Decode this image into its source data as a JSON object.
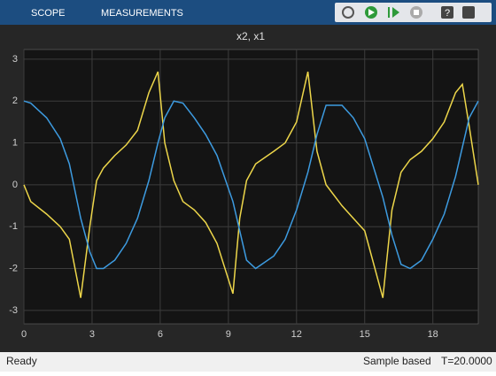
{
  "toolbar": {
    "tabs": [
      "SCOPE",
      "MEASUREMENTS"
    ]
  },
  "status": {
    "left": "Ready",
    "mode": "Sample based",
    "time": "T=20.0000"
  },
  "chart_data": {
    "type": "line",
    "title": "x2, x1",
    "x": [
      0,
      0.3,
      1,
      1.6,
      2,
      2.5,
      2.9,
      3.2,
      3.5,
      4,
      4.5,
      5,
      5.5,
      5.9,
      6.2,
      6.6,
      7,
      7.5,
      8,
      8.5,
      9.2,
      9.5,
      9.8,
      10.2,
      11,
      11.5,
      12,
      12.5,
      12.9,
      13.3,
      14,
      14.5,
      15,
      15.8,
      16.2,
      16.6,
      17,
      17.5,
      18,
      18.5,
      19,
      19.3,
      19.6,
      20
    ],
    "series": [
      {
        "color": "#edd64a",
        "values": [
          0,
          -0.4,
          -0.7,
          -1.0,
          -1.3,
          -2.7,
          -1.0,
          0.1,
          0.4,
          0.7,
          0.95,
          1.3,
          2.2,
          2.7,
          1.0,
          0.1,
          -0.4,
          -0.6,
          -0.9,
          -1.4,
          -2.6,
          -0.8,
          0.1,
          0.5,
          0.8,
          1.0,
          1.5,
          2.7,
          0.8,
          0.0,
          -0.5,
          -0.8,
          -1.1,
          -2.7,
          -0.6,
          0.3,
          0.6,
          0.8,
          1.1,
          1.5,
          2.2,
          2.4,
          1.4,
          0.0
        ]
      },
      {
        "color": "#3d9be0",
        "values": [
          2.0,
          1.95,
          1.6,
          1.1,
          0.5,
          -0.8,
          -1.6,
          -2.0,
          -2.0,
          -1.8,
          -1.4,
          -0.8,
          0.1,
          1.0,
          1.6,
          2.0,
          1.95,
          1.6,
          1.2,
          0.7,
          -0.4,
          -1.1,
          -1.8,
          -2.0,
          -1.7,
          -1.3,
          -0.6,
          0.3,
          1.2,
          1.9,
          1.9,
          1.6,
          1.1,
          -0.3,
          -1.2,
          -1.9,
          -2.0,
          -1.8,
          -1.3,
          -0.7,
          0.2,
          0.9,
          1.6,
          2.0
        ]
      }
    ],
    "xlim": [
      0,
      20
    ],
    "xticks": [
      0,
      3,
      6,
      9,
      12,
      15,
      18
    ],
    "ylim": [
      -3.32,
      3.23
    ],
    "yticks": [
      -3,
      -2,
      -1,
      0,
      1,
      2,
      3
    ],
    "grid": true
  }
}
